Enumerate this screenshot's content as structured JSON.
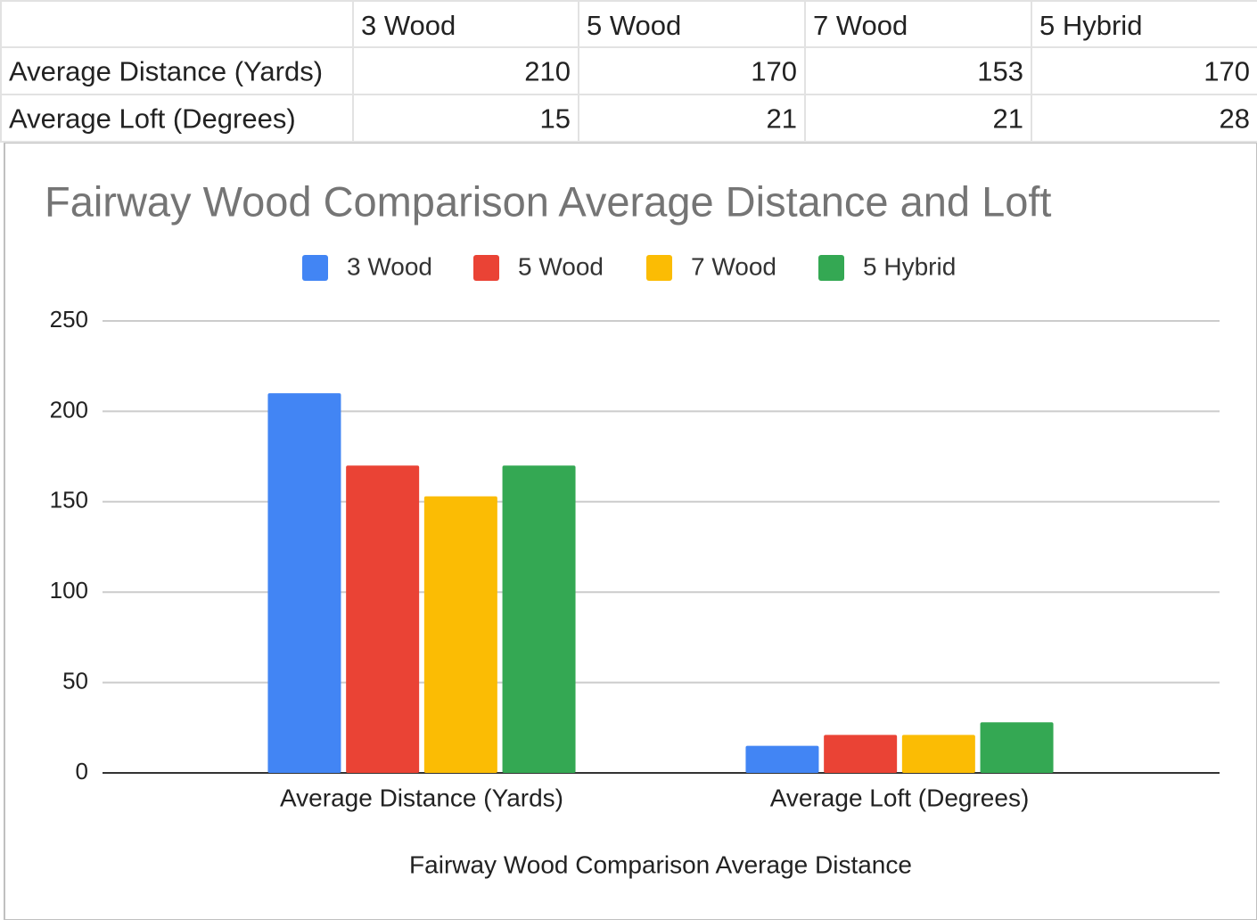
{
  "table": {
    "header": [
      "3 Wood",
      "5 Wood",
      "7 Wood",
      "5 Hybrid"
    ],
    "rows": [
      {
        "label": "Average Distance (Yards)",
        "cells": [
          210,
          170,
          153,
          170
        ]
      },
      {
        "label": "Average Loft (Degrees)",
        "cells": [
          15,
          21,
          21,
          28
        ]
      }
    ]
  },
  "chart_data": {
    "type": "bar",
    "title": "Fairway Wood Comparison Average Distance and Loft",
    "x_label": "Fairway Wood Comparison Average Distance",
    "categories": [
      "Average Distance (Yards)",
      "Average Loft (Degrees)"
    ],
    "series": [
      {
        "name": "3 Wood",
        "color": "#4285f4",
        "values": [
          210,
          15
        ]
      },
      {
        "name": "5 Wood",
        "color": "#ea4335",
        "values": [
          170,
          21
        ]
      },
      {
        "name": "7 Wood",
        "color": "#fbbc04",
        "values": [
          153,
          21
        ]
      },
      {
        "name": "5 Hybrid",
        "color": "#34a853",
        "values": [
          170,
          28
        ]
      }
    ],
    "ylim": [
      0,
      250
    ],
    "yticks": [
      0,
      50,
      100,
      150,
      200,
      250
    ],
    "grid": true,
    "legend": "top"
  }
}
